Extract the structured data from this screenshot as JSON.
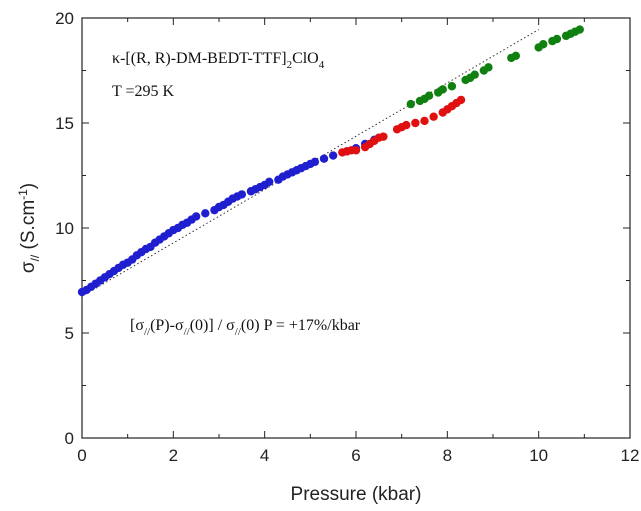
{
  "chart_data": {
    "type": "scatter",
    "xlabel": "Pressure (kbar)",
    "ylabel": {
      "main": "σ",
      "sub": "//",
      "rest": " (S.cm",
      "sup": "-1",
      "close": ")"
    },
    "xlim": [
      0,
      12
    ],
    "ylim": [
      0,
      20
    ],
    "x_ticks": [
      0,
      2,
      4,
      6,
      8,
      10,
      12
    ],
    "y_ticks": [
      0,
      5,
      10,
      15,
      20
    ],
    "grid": false,
    "legend": "none",
    "annotations": {
      "compound": {
        "prefix": "κ-[(R, R)-DM-BEDT-TTF]",
        "sub1": "2",
        "mid": "ClO",
        "sub2": "4"
      },
      "temperature": "T =295 K",
      "formula": {
        "p1": "[σ",
        "s1": "//",
        "p2": "(P)-σ",
        "s2": "//",
        "p3": "(0)] / σ",
        "s3": "//",
        "p4": "(0) P = +17%/kbar"
      }
    },
    "fit_line": {
      "x": [
        0,
        10
      ],
      "y": [
        6.75,
        19.45
      ],
      "style": "dotted",
      "color": "#333333"
    },
    "series": [
      {
        "color": "#1f1fd0",
        "x": [
          0,
          0.1,
          0.2,
          0.3,
          0.4,
          0.5,
          0.6,
          0.7,
          0.8,
          0.9,
          1.0,
          1.1,
          1.2,
          1.3,
          1.4,
          1.5,
          1.6,
          1.7,
          1.8,
          1.9,
          2.0,
          2.1,
          2.2,
          2.3,
          2.4,
          2.5,
          2.7,
          2.9,
          3.0,
          3.1,
          3.2,
          3.3,
          3.4,
          3.5,
          3.7,
          3.8,
          3.9,
          4.0,
          4.1,
          4.3,
          4.4,
          4.5,
          4.6,
          4.7,
          4.8,
          4.9,
          5.0,
          5.1,
          5.3,
          5.5,
          5.8,
          6.0,
          6.2,
          6.4
        ],
        "y": [
          6.95,
          7.05,
          7.2,
          7.35,
          7.5,
          7.65,
          7.8,
          7.95,
          8.1,
          8.25,
          8.35,
          8.5,
          8.7,
          8.85,
          9.0,
          9.1,
          9.3,
          9.45,
          9.6,
          9.75,
          9.9,
          10.0,
          10.15,
          10.25,
          10.4,
          10.55,
          10.7,
          10.85,
          11.0,
          11.1,
          11.25,
          11.4,
          11.5,
          11.6,
          11.75,
          11.85,
          11.95,
          12.05,
          12.2,
          12.3,
          12.45,
          12.55,
          12.65,
          12.75,
          12.85,
          12.95,
          13.05,
          13.15,
          13.3,
          13.45,
          13.65,
          13.8,
          14.0,
          14.2
        ]
      },
      {
        "color": "#e01010",
        "x": [
          5.7,
          5.8,
          5.9,
          6.0,
          6.2,
          6.3,
          6.4,
          6.5,
          6.6,
          6.9,
          7.0,
          7.1,
          7.3,
          7.5,
          7.7,
          7.9,
          8.0,
          8.1,
          8.2,
          8.3
        ],
        "y": [
          13.6,
          13.65,
          13.7,
          13.7,
          13.85,
          14.0,
          14.15,
          14.3,
          14.35,
          14.7,
          14.8,
          14.9,
          15.0,
          15.1,
          15.3,
          15.5,
          15.65,
          15.8,
          15.95,
          16.1
        ]
      },
      {
        "color": "#108010",
        "x": [
          7.2,
          7.4,
          7.5,
          7.6,
          7.8,
          7.9,
          8.1,
          8.4,
          8.5,
          8.6,
          8.8,
          8.9,
          9.4,
          9.5,
          10.0,
          10.1,
          10.3,
          10.4,
          10.6,
          10.7,
          10.8,
          10.9
        ],
        "y": [
          15.9,
          16.05,
          16.15,
          16.3,
          16.45,
          16.6,
          16.75,
          17.05,
          17.15,
          17.3,
          17.5,
          17.65,
          18.1,
          18.2,
          18.6,
          18.75,
          18.9,
          19.0,
          19.15,
          19.25,
          19.35,
          19.45
        ]
      }
    ]
  }
}
